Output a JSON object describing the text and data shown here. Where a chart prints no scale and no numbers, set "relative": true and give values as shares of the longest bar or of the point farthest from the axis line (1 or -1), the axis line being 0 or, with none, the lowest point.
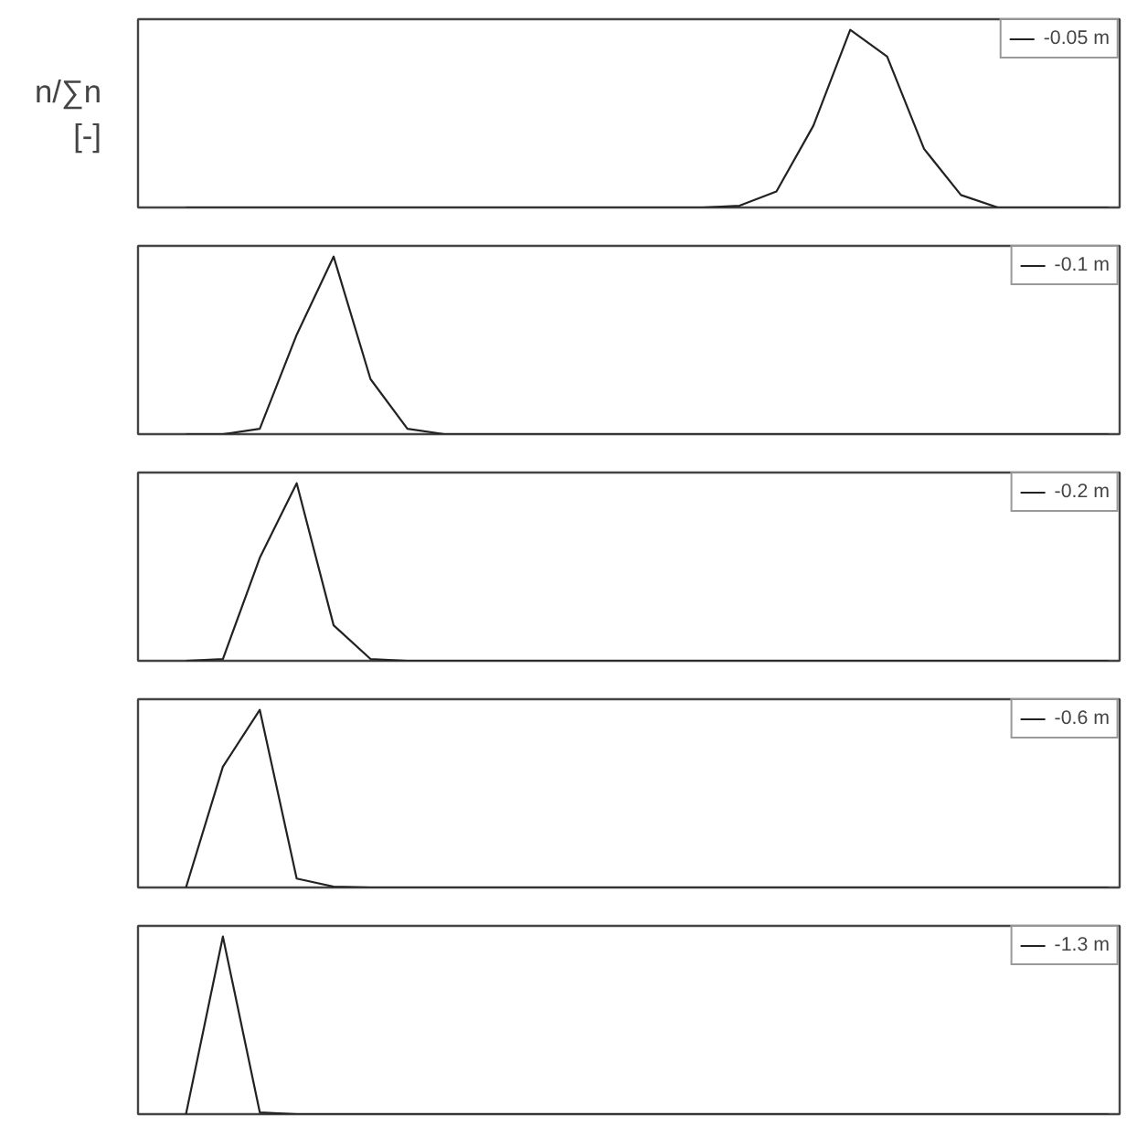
{
  "chart_data": [
    {
      "type": "line",
      "ylabel": "n/∑n\n[-]",
      "relative": true,
      "legend": "top right",
      "grid": false,
      "marker": "none",
      "line_style": "solid",
      "tick_labels": false,
      "categories": [
        null,
        null,
        null,
        null,
        null,
        null,
        null,
        null,
        null,
        null,
        null,
        null,
        null,
        null,
        null,
        null,
        null,
        null,
        null,
        null,
        null,
        null,
        null,
        null,
        null,
        null
      ],
      "series": [
        {
          "name": "-0.05 m",
          "color": "#222222",
          "values": [
            0,
            0,
            0,
            0,
            0,
            0,
            0,
            0,
            0,
            0,
            0,
            0,
            0,
            0,
            0,
            0.01,
            0.09,
            0.46,
            1,
            0.85,
            0.33,
            0.07,
            0,
            0,
            0,
            0
          ]
        }
      ]
    },
    {
      "type": "line",
      "relative": true,
      "legend": "top right",
      "grid": false,
      "marker": "none",
      "line_style": "solid",
      "tick_labels": false,
      "categories": [
        null,
        null,
        null,
        null,
        null,
        null,
        null,
        null,
        null,
        null,
        null,
        null,
        null,
        null,
        null,
        null,
        null,
        null,
        null,
        null,
        null,
        null,
        null,
        null,
        null,
        null
      ],
      "series": [
        {
          "name": "-0.1 m",
          "color": "#222222",
          "values": [
            0,
            0,
            0.03,
            0.56,
            1,
            0.31,
            0.03,
            0,
            0,
            0,
            0,
            0,
            0,
            0,
            0,
            0,
            0,
            0,
            0,
            0,
            0,
            0,
            0,
            0,
            0,
            0
          ]
        }
      ]
    },
    {
      "type": "line",
      "relative": true,
      "legend": "top right",
      "grid": false,
      "marker": "none",
      "line_style": "solid",
      "tick_labels": false,
      "categories": [
        null,
        null,
        null,
        null,
        null,
        null,
        null,
        null,
        null,
        null,
        null,
        null,
        null,
        null,
        null,
        null,
        null,
        null,
        null,
        null,
        null,
        null,
        null,
        null,
        null,
        null
      ],
      "series": [
        {
          "name": "-0.2 m",
          "color": "#222222",
          "values": [
            0,
            0.01,
            0.58,
            1,
            0.2,
            0.01,
            0,
            0,
            0,
            0,
            0,
            0,
            0,
            0,
            0,
            0,
            0,
            0,
            0,
            0,
            0,
            0,
            0,
            0,
            0,
            0
          ]
        }
      ]
    },
    {
      "type": "line",
      "relative": true,
      "legend": "top right",
      "grid": false,
      "marker": "none",
      "line_style": "solid",
      "tick_labels": false,
      "categories": [
        null,
        null,
        null,
        null,
        null,
        null,
        null,
        null,
        null,
        null,
        null,
        null,
        null,
        null,
        null,
        null,
        null,
        null,
        null,
        null,
        null,
        null,
        null,
        null,
        null,
        null
      ],
      "series": [
        {
          "name": "-0.6 m",
          "color": "#222222",
          "values": [
            0,
            0.68,
            1,
            0.05,
            0.005,
            0,
            0,
            0,
            0,
            0,
            0,
            0,
            0,
            0,
            0,
            0,
            0,
            0,
            0,
            0,
            0,
            0,
            0,
            0,
            0,
            0
          ]
        }
      ]
    },
    {
      "type": "line",
      "relative": true,
      "legend": "top right",
      "grid": false,
      "marker": "none",
      "line_style": "solid",
      "tick_labels": false,
      "categories": [
        null,
        null,
        null,
        null,
        null,
        null,
        null,
        null,
        null,
        null,
        null,
        null,
        null,
        null,
        null,
        null,
        null,
        null,
        null,
        null,
        null,
        null,
        null,
        null,
        null,
        null
      ],
      "series": [
        {
          "name": "-1.3 m",
          "color": "#222222",
          "values": [
            0,
            1,
            0.01,
            0,
            0,
            0,
            0,
            0,
            0,
            0,
            0,
            0,
            0,
            0,
            0,
            0,
            0,
            0,
            0,
            0,
            0,
            0,
            0,
            0,
            0,
            0
          ]
        }
      ]
    }
  ]
}
